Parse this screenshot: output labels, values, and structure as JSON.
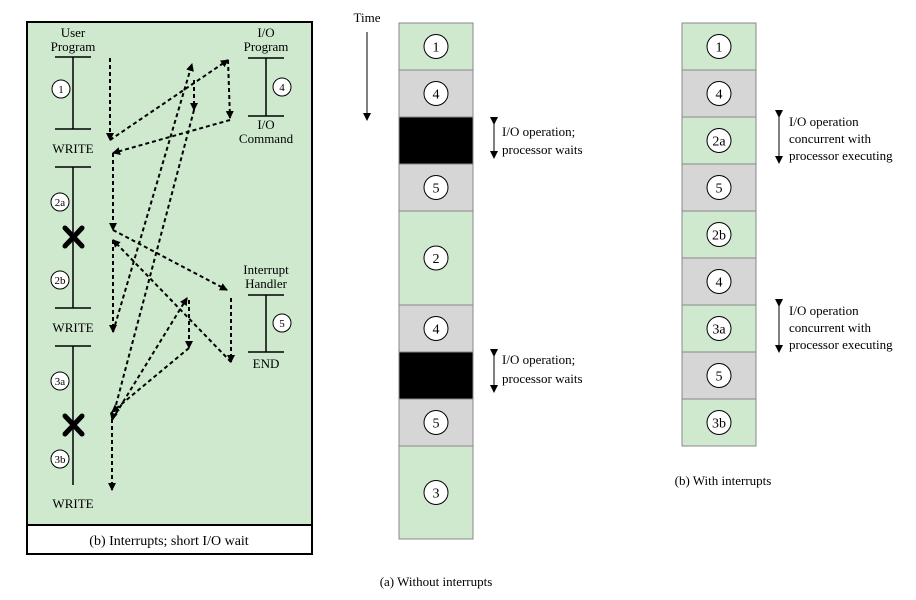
{
  "colors": {
    "green": "#cfe9cf",
    "gray": "#d6d6d6",
    "black": "#000000",
    "panel_border": "#000000"
  },
  "left_panel": {
    "user_program_line1": "User",
    "user_program_line2": "Program",
    "io_program_line1": "I/O",
    "io_program_line2": "Program",
    "io_command_line1": "I/O",
    "io_command_line2": "Command",
    "interrupt_handler_line1": "Interrupt",
    "interrupt_handler_line2": "Handler",
    "write_labels": [
      "WRITE",
      "WRITE",
      "WRITE"
    ],
    "end_label": "END",
    "segment_numbers": [
      "1",
      "2a",
      "2b",
      "3a",
      "3b"
    ],
    "io_number": "4",
    "handler_number": "5",
    "caption": "(b) Interrupts; short I/O wait"
  },
  "timeline_a": {
    "time_label": "Time",
    "blocks": [
      {
        "label": "1",
        "kind": "green"
      },
      {
        "label": "4",
        "kind": "gray"
      },
      {
        "label": "",
        "kind": "black"
      },
      {
        "label": "5",
        "kind": "gray"
      },
      {
        "label": "2",
        "kind": "green"
      },
      {
        "label": "4",
        "kind": "gray"
      },
      {
        "label": "",
        "kind": "black"
      },
      {
        "label": "5",
        "kind": "gray"
      },
      {
        "label": "3",
        "kind": "green"
      }
    ],
    "annotations": [
      {
        "line1": "I/O operation;",
        "line2": "processor waits"
      },
      {
        "line1": "I/O operation;",
        "line2": "processor waits"
      }
    ],
    "caption": "(a) Without interrupts"
  },
  "timeline_b": {
    "blocks": [
      {
        "label": "1",
        "kind": "green"
      },
      {
        "label": "4",
        "kind": "gray"
      },
      {
        "label": "2a",
        "kind": "green"
      },
      {
        "label": "5",
        "kind": "gray"
      },
      {
        "label": "2b",
        "kind": "green"
      },
      {
        "label": "4",
        "kind": "gray"
      },
      {
        "label": "3a",
        "kind": "green"
      },
      {
        "label": "5",
        "kind": "gray"
      },
      {
        "label": "3b",
        "kind": "green"
      }
    ],
    "annotations": [
      {
        "line1": "I/O operation",
        "line2": "concurrent with",
        "line3": "processor executing"
      },
      {
        "line1": "I/O operation",
        "line2": "concurrent with",
        "line3": "processor executing"
      }
    ],
    "caption": "(b) With interrupts"
  }
}
